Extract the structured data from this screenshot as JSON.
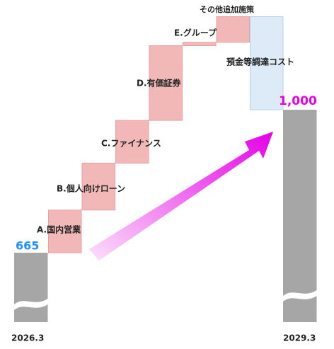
{
  "chart_data": {
    "type": "waterfall",
    "start": {
      "label": "2026.3",
      "value": 665,
      "color": "#a6a6a6",
      "value_color": "#1e90ff"
    },
    "steps": [
      {
        "name": "A.国内営業",
        "value": 100,
        "color": "#f2b8b8"
      },
      {
        "name": "B.個人向けローン",
        "value": 110,
        "color": "#f2b8b8"
      },
      {
        "name": "C.ファイナンス",
        "value": 100,
        "color": "#f2b8b8"
      },
      {
        "name": "D.有価証券",
        "value": 175,
        "color": "#f2b8b8"
      },
      {
        "name": "E.グループ",
        "value": 8,
        "color": "#f2b8b8"
      },
      {
        "name": "その他追加施策",
        "value": 60,
        "color": "#f2b8b8"
      },
      {
        "name": "預金等調達コスト",
        "value": -218,
        "color": "#dcebf7"
      }
    ],
    "end": {
      "label": "2029.3",
      "value": 1000,
      "value_label": "1,000",
      "color": "#a6a6a6",
      "value_color": "#e600e6"
    }
  }
}
